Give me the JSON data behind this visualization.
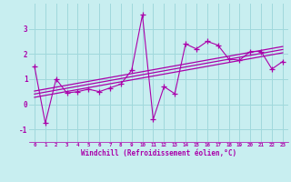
{
  "title": "",
  "xlabel": "Windchill (Refroidissement éolien,°C)",
  "background_color": "#c8eef0",
  "line_color": "#aa00aa",
  "grid_color": "#a0d8dc",
  "x_data": [
    0,
    1,
    2,
    3,
    4,
    5,
    6,
    7,
    8,
    9,
    10,
    11,
    12,
    13,
    14,
    15,
    16,
    17,
    18,
    19,
    20,
    21,
    22,
    23
  ],
  "y_main": [
    1.5,
    -0.75,
    1.0,
    0.45,
    0.5,
    0.6,
    0.5,
    0.65,
    0.8,
    1.35,
    3.55,
    -0.6,
    0.7,
    0.42,
    2.4,
    2.2,
    2.5,
    2.35,
    1.8,
    1.75,
    2.1,
    2.1,
    1.4,
    1.7
  ],
  "xlim": [
    -0.5,
    23.5
  ],
  "ylim": [
    -1.5,
    4.0
  ],
  "yticks": [
    -1,
    0,
    1,
    2,
    3
  ],
  "xticks": [
    0,
    1,
    2,
    3,
    4,
    5,
    6,
    7,
    8,
    9,
    10,
    11,
    12,
    13,
    14,
    15,
    16,
    17,
    18,
    19,
    20,
    21,
    22,
    23
  ],
  "reg_offsets": [
    -0.13,
    0.0,
    0.12
  ],
  "reg_start": 0.88,
  "reg_slope": 0.036
}
